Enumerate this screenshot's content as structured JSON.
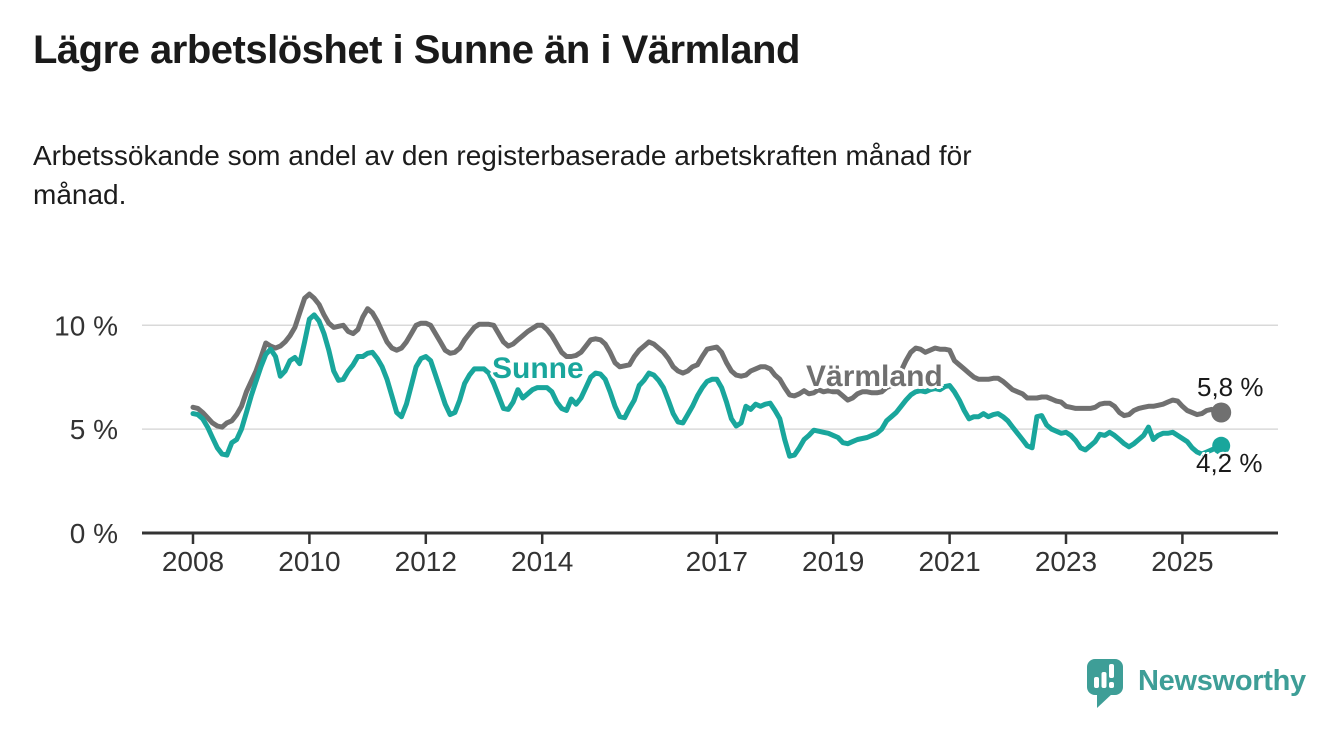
{
  "header": {
    "title": "Lägre arbetslöshet i Sunne än i Värmland",
    "subtitle_lines": [
      "Arbetssökande som andel av den registerbaserade arbetskraften månad för",
      "månad."
    ]
  },
  "chart_data": {
    "type": "line",
    "unit": "%",
    "x_start": {
      "year": 2008,
      "month": 1
    },
    "x_interval": "monthly",
    "x_end": {
      "year": 2025,
      "month": 9
    },
    "ylim": [
      0,
      12
    ],
    "grid": "horizontal",
    "colors": {
      "sunne": "#19a69c",
      "varmland": "#707070",
      "grid": "#d9d9d9",
      "axis": "#333333",
      "text": "#1a1a1a"
    },
    "yticks": [
      {
        "value": 0,
        "label": "0 %"
      },
      {
        "value": 5,
        "label": "5 %"
      },
      {
        "value": 10,
        "label": "10 %"
      }
    ],
    "xticks": [
      {
        "value": 2008,
        "label": "2008"
      },
      {
        "value": 2010,
        "label": "2010"
      },
      {
        "value": 2012,
        "label": "2012"
      },
      {
        "value": 2014,
        "label": "2014"
      },
      {
        "value": 2017,
        "label": "2017"
      },
      {
        "value": 2019,
        "label": "2019"
      },
      {
        "value": 2021,
        "label": "2021"
      },
      {
        "value": 2023,
        "label": "2023"
      },
      {
        "value": 2025,
        "label": "2025"
      }
    ],
    "series": [
      {
        "name": "Värmland",
        "color": "#707070",
        "end_label": "5,8 %",
        "end_value": 5.8,
        "dot_radius": 10,
        "values": [
          6.05,
          6.0,
          5.8,
          5.55,
          5.3,
          5.15,
          5.1,
          5.3,
          5.4,
          5.7,
          6.1,
          6.8,
          7.3,
          7.8,
          8.45,
          9.15,
          9.0,
          8.9,
          9.0,
          9.2,
          9.5,
          9.9,
          10.6,
          11.3,
          11.5,
          11.3,
          11.0,
          10.5,
          10.1,
          9.9,
          9.95,
          10.0,
          9.7,
          9.6,
          9.8,
          10.4,
          10.8,
          10.6,
          10.2,
          9.7,
          9.2,
          8.9,
          8.8,
          8.9,
          9.2,
          9.6,
          10.0,
          10.1,
          10.1,
          10.0,
          9.6,
          9.2,
          8.8,
          8.65,
          8.7,
          8.9,
          9.3,
          9.6,
          9.9,
          10.05,
          10.05,
          10.05,
          10.0,
          9.6,
          9.2,
          9.0,
          9.1,
          9.3,
          9.5,
          9.7,
          9.85,
          10.0,
          10.0,
          9.8,
          9.5,
          9.1,
          8.7,
          8.5,
          8.5,
          8.55,
          8.7,
          9.0,
          9.3,
          9.35,
          9.3,
          9.1,
          8.7,
          8.2,
          8.0,
          8.05,
          8.1,
          8.5,
          8.8,
          9.0,
          9.2,
          9.1,
          8.9,
          8.7,
          8.4,
          8.0,
          7.8,
          7.7,
          7.8,
          8.0,
          8.1,
          8.5,
          8.85,
          8.9,
          8.95,
          8.7,
          8.2,
          7.8,
          7.6,
          7.55,
          7.6,
          7.8,
          7.9,
          8.0,
          8.0,
          7.9,
          7.6,
          7.4,
          7.0,
          6.65,
          6.6,
          6.7,
          6.85,
          6.7,
          6.75,
          6.9,
          6.8,
          6.85,
          6.8,
          6.8,
          6.6,
          6.4,
          6.5,
          6.7,
          6.8,
          6.8,
          6.75,
          6.75,
          6.8,
          7.0,
          7.1,
          7.3,
          7.8,
          8.3,
          8.7,
          8.9,
          8.85,
          8.7,
          8.8,
          8.9,
          8.85,
          8.85,
          8.8,
          8.3,
          8.1,
          7.9,
          7.7,
          7.5,
          7.4,
          7.4,
          7.4,
          7.45,
          7.45,
          7.3,
          7.1,
          6.9,
          6.8,
          6.7,
          6.5,
          6.5,
          6.5,
          6.55,
          6.55,
          6.45,
          6.35,
          6.3,
          6.1,
          6.05,
          6.0,
          6.0,
          6.0,
          6.0,
          6.05,
          6.2,
          6.25,
          6.25,
          6.1,
          5.8,
          5.65,
          5.7,
          5.9,
          6.0,
          6.05,
          6.1,
          6.1,
          6.15,
          6.2,
          6.3,
          6.4,
          6.35,
          6.1,
          5.9,
          5.8,
          5.7,
          5.75,
          5.9,
          5.95,
          5.85,
          5.8
        ]
      },
      {
        "name": "Sunne",
        "color": "#19a69c",
        "end_label": "4,2 %",
        "end_value": 4.2,
        "dot_radius": 9,
        "values": [
          5.75,
          5.7,
          5.5,
          5.1,
          4.6,
          4.1,
          3.8,
          3.75,
          4.35,
          4.5,
          5.0,
          5.8,
          6.6,
          7.3,
          8.0,
          8.6,
          8.85,
          8.5,
          7.55,
          7.8,
          8.3,
          8.45,
          8.15,
          9.2,
          10.3,
          10.5,
          10.2,
          9.6,
          8.8,
          7.8,
          7.35,
          7.4,
          7.8,
          8.1,
          8.5,
          8.5,
          8.65,
          8.7,
          8.4,
          8.0,
          7.4,
          6.6,
          5.8,
          5.6,
          6.2,
          7.1,
          8.0,
          8.4,
          8.5,
          8.3,
          7.6,
          6.9,
          6.2,
          5.7,
          5.8,
          6.4,
          7.2,
          7.6,
          7.9,
          7.9,
          7.9,
          7.7,
          7.2,
          6.6,
          6.0,
          5.95,
          6.3,
          6.9,
          6.5,
          6.7,
          6.9,
          7.0,
          7.0,
          7.0,
          6.8,
          6.3,
          6.0,
          5.9,
          6.45,
          6.2,
          6.5,
          7.0,
          7.5,
          7.7,
          7.65,
          7.4,
          6.8,
          6.1,
          5.6,
          5.55,
          6.0,
          6.4,
          7.1,
          7.35,
          7.7,
          7.6,
          7.35,
          7.0,
          6.4,
          5.75,
          5.35,
          5.3,
          5.7,
          6.1,
          6.6,
          7.0,
          7.3,
          7.4,
          7.4,
          7.0,
          6.3,
          5.5,
          5.15,
          5.3,
          6.1,
          5.95,
          6.2,
          6.1,
          6.2,
          6.25,
          5.9,
          5.5,
          4.5,
          3.7,
          3.75,
          4.1,
          4.5,
          4.7,
          4.95,
          4.9,
          4.85,
          4.8,
          4.7,
          4.6,
          4.35,
          4.3,
          4.4,
          4.5,
          4.55,
          4.6,
          4.7,
          4.8,
          5.0,
          5.4,
          5.6,
          5.8,
          6.1,
          6.4,
          6.65,
          6.8,
          6.85,
          6.8,
          6.9,
          6.95,
          6.9,
          7.05,
          7.1,
          6.8,
          6.4,
          5.9,
          5.5,
          5.6,
          5.6,
          5.75,
          5.6,
          5.7,
          5.75,
          5.6,
          5.4,
          5.1,
          4.8,
          4.5,
          4.2,
          4.1,
          5.6,
          5.65,
          5.2,
          5.0,
          4.9,
          4.8,
          4.85,
          4.7,
          4.45,
          4.1,
          4.0,
          4.2,
          4.4,
          4.75,
          4.7,
          4.85,
          4.7,
          4.5,
          4.3,
          4.15,
          4.3,
          4.5,
          4.7,
          5.1,
          4.5,
          4.7,
          4.8,
          4.8,
          4.85,
          4.7,
          4.55,
          4.4,
          4.1,
          3.9,
          3.8,
          3.9,
          4.0,
          4.1,
          4.2
        ]
      }
    ]
  },
  "footer": {
    "brand": "Newsworthy"
  }
}
